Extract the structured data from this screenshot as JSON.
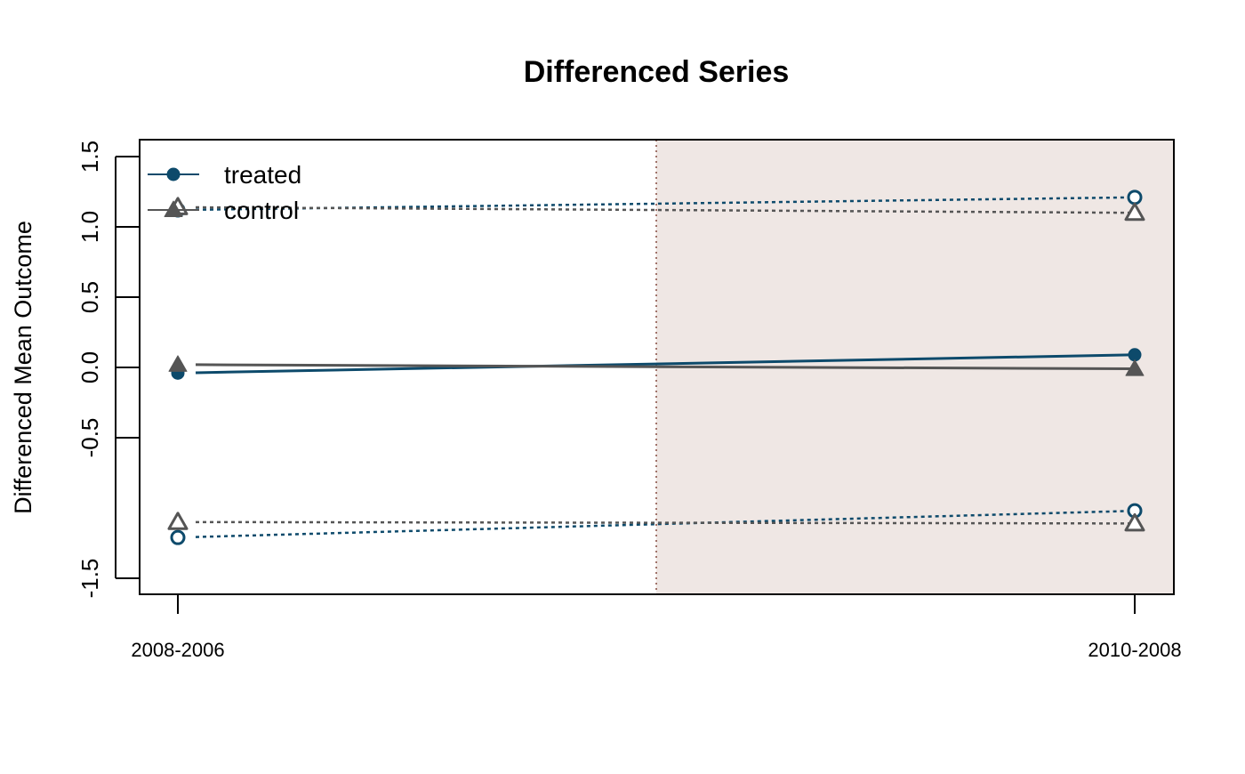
{
  "chart_data": {
    "type": "line",
    "title": "Differenced Series",
    "xlabel": "",
    "ylabel": "Differenced Mean Outcome",
    "categories": [
      "2008-2006",
      "2010-2008"
    ],
    "ylim": [
      -1.6,
      1.6
    ],
    "yticks": [
      -1.5,
      -0.5,
      0.0,
      0.5,
      1.0,
      1.5
    ],
    "ytick_labels": [
      "-1.5",
      "-0.5",
      "0.0",
      "0.5",
      "1.0",
      "1.5"
    ],
    "grid": false,
    "legend_position": "top-left",
    "shaded_region": {
      "from_category_fraction": 0.5,
      "to": "right-edge",
      "color": "#efe7e4"
    },
    "vline": {
      "at_category_fraction": 0.5,
      "color": "#a0736a",
      "style": "dotted"
    },
    "series": [
      {
        "name": "treated",
        "color": "#0d4a6b",
        "marker": "filled-circle",
        "line": "solid",
        "values": [
          -0.04,
          0.09
        ]
      },
      {
        "name": "control",
        "color": "#555555",
        "marker": "filled-triangle",
        "line": "solid",
        "values": [
          0.02,
          -0.01
        ]
      }
    ],
    "bounds": [
      {
        "of": "treated",
        "kind": "upper",
        "color": "#0d4a6b",
        "marker": "open-circle",
        "line": "dotted",
        "values": [
          1.12,
          1.21
        ]
      },
      {
        "of": "treated",
        "kind": "lower",
        "color": "#0d4a6b",
        "marker": "open-circle",
        "line": "dotted",
        "values": [
          -1.21,
          -1.02
        ]
      },
      {
        "of": "control",
        "kind": "upper",
        "color": "#555555",
        "marker": "open-triangle",
        "line": "dotted",
        "values": [
          1.14,
          1.1
        ]
      },
      {
        "of": "control",
        "kind": "lower",
        "color": "#555555",
        "marker": "open-triangle",
        "line": "dotted",
        "values": [
          -1.1,
          -1.11
        ]
      }
    ]
  }
}
